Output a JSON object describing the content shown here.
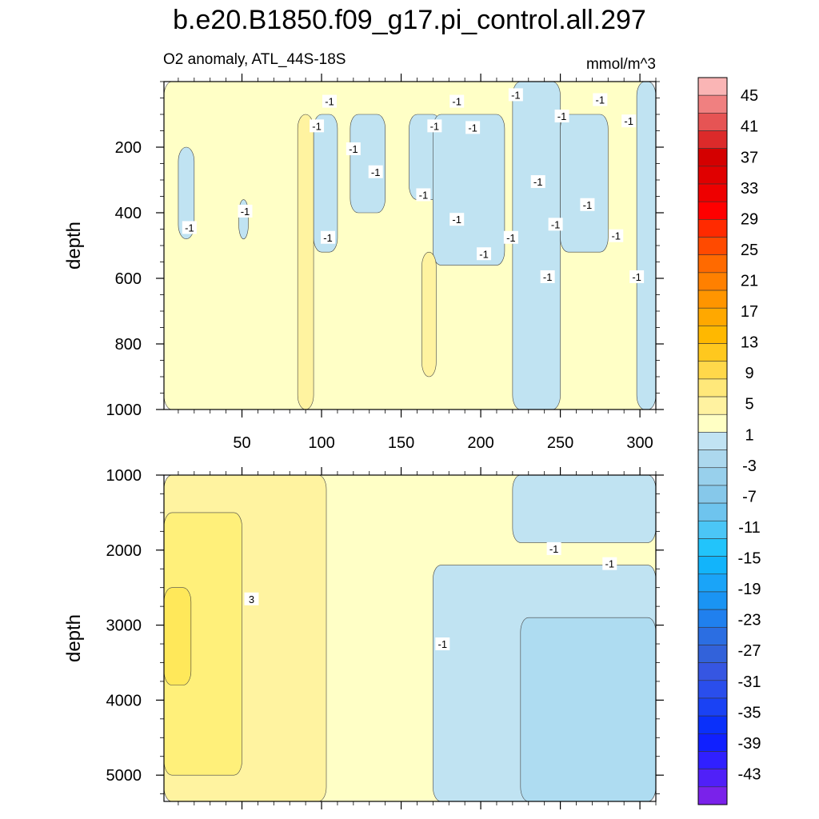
{
  "chart_data": {
    "type": "heatmap",
    "title": "b.e20.B1850.f09_g17.pi_control.all.297",
    "subtitle_left": "O2 anomaly, ATL_44S-18S",
    "subtitle_right": "mmol/m^3",
    "xlim": [
      1,
      310
    ],
    "x_ticks": [
      50,
      100,
      150,
      200,
      250,
      300
    ],
    "x_tick_labels": [
      "50",
      "100",
      "150",
      "200",
      "250",
      "300"
    ],
    "panels": [
      {
        "name": "upper",
        "ylabel": "depth",
        "ylim": [
          0,
          1000
        ],
        "y_ticks": [
          200,
          400,
          600,
          800,
          1000
        ],
        "y_tick_labels": [
          "200",
          "400",
          "600",
          "800",
          "1000"
        ],
        "regions": [
          {
            "level": 1,
            "x": [
              1,
              310
            ],
            "y": [
              0,
              1000
            ]
          },
          {
            "level": -1,
            "x": [
              220,
              250
            ],
            "y": [
              0,
              1000
            ]
          },
          {
            "level": -1,
            "x": [
              298,
              310
            ],
            "y": [
              0,
              1000
            ]
          },
          {
            "level": -1,
            "x": [
              10,
              20
            ],
            "y": [
              200,
              480
            ]
          },
          {
            "level": -1,
            "x": [
              48,
              54
            ],
            "y": [
              360,
              480
            ]
          },
          {
            "level": -1,
            "x": [
              95,
              110
            ],
            "y": [
              100,
              520
            ]
          },
          {
            "level": -1,
            "x": [
              118,
              140
            ],
            "y": [
              100,
              400
            ]
          },
          {
            "level": -1,
            "x": [
              155,
              175
            ],
            "y": [
              100,
              360
            ]
          },
          {
            "level": -1,
            "x": [
              170,
              215
            ],
            "y": [
              100,
              560
            ]
          },
          {
            "level": -1,
            "x": [
              250,
              280
            ],
            "y": [
              100,
              520
            ]
          },
          {
            "level": 3,
            "x": [
              85,
              95
            ],
            "y": [
              100,
              1000
            ]
          },
          {
            "level": 3,
            "x": [
              163,
              172
            ],
            "y": [
              520,
              900
            ]
          }
        ],
        "contour_labels": [
          {
            "text": "-1",
            "x": 105,
            "y": 60
          },
          {
            "text": "-1",
            "x": 97,
            "y": 135
          },
          {
            "text": "-1",
            "x": 120,
            "y": 205
          },
          {
            "text": "-1",
            "x": 134,
            "y": 275
          },
          {
            "text": "-1",
            "x": 185,
            "y": 60
          },
          {
            "text": "-1",
            "x": 171,
            "y": 135
          },
          {
            "text": "-1",
            "x": 195,
            "y": 140
          },
          {
            "text": "-1",
            "x": 222,
            "y": 40
          },
          {
            "text": "-1",
            "x": 251,
            "y": 105
          },
          {
            "text": "-1",
            "x": 275,
            "y": 55
          },
          {
            "text": "-1",
            "x": 293,
            "y": 120
          },
          {
            "text": "-1",
            "x": 236,
            "y": 305
          },
          {
            "text": "-1",
            "x": 164,
            "y": 345
          },
          {
            "text": "-1",
            "x": 52,
            "y": 395
          },
          {
            "text": "-1",
            "x": 17,
            "y": 445
          },
          {
            "text": "-1",
            "x": 104,
            "y": 475
          },
          {
            "text": "-1",
            "x": 185,
            "y": 420
          },
          {
            "text": "-1",
            "x": 219,
            "y": 475
          },
          {
            "text": "-1",
            "x": 202,
            "y": 525
          },
          {
            "text": "-1",
            "x": 247,
            "y": 435
          },
          {
            "text": "-1",
            "x": 267,
            "y": 375
          },
          {
            "text": "-1",
            "x": 285,
            "y": 470
          },
          {
            "text": "-1",
            "x": 242,
            "y": 595
          },
          {
            "text": "-1",
            "x": 298,
            "y": 595
          }
        ]
      },
      {
        "name": "lower",
        "ylabel": "depth",
        "ylim": [
          1000,
          5350
        ],
        "y_ticks": [
          1000,
          2000,
          3000,
          4000,
          5000
        ],
        "y_tick_labels": [
          "1000",
          "2000",
          "3000",
          "4000",
          "5000"
        ],
        "regions": [
          {
            "level": 1,
            "x": [
              1,
              310
            ],
            "y": [
              1000,
              5350
            ]
          },
          {
            "level": 3,
            "x": [
              1,
              103
            ],
            "y": [
              1000,
              5350
            ]
          },
          {
            "level": 5,
            "x": [
              1,
              50
            ],
            "y": [
              1500,
              5000
            ]
          },
          {
            "level": 7,
            "x": [
              1,
              18
            ],
            "y": [
              2500,
              3800
            ]
          },
          {
            "level": -1,
            "x": [
              170,
              310
            ],
            "y": [
              2200,
              5350
            ]
          },
          {
            "level": -1,
            "x": [
              220,
              310
            ],
            "y": [
              1000,
              1900
            ]
          },
          {
            "level": -3,
            "x": [
              225,
              310
            ],
            "y": [
              2900,
              5350
            ]
          }
        ],
        "contour_labels": [
          {
            "text": "3",
            "x": 56,
            "y": 2650
          },
          {
            "text": "-1",
            "x": 176,
            "y": 3250
          },
          {
            "text": "-1",
            "x": 246,
            "y": 1980
          },
          {
            "text": "-1",
            "x": 281,
            "y": 2180
          }
        ]
      }
    ],
    "colorbar": {
      "labels": [
        "45",
        "41",
        "37",
        "33",
        "29",
        "25",
        "21",
        "17",
        "13",
        "9",
        "5",
        "1",
        "-3",
        "-7",
        "-11",
        "-15",
        "-19",
        "-23",
        "-27",
        "-31",
        "-35",
        "-39",
        "-43"
      ],
      "colors": [
        "#fab5b5",
        "#f08080",
        "#e65454",
        "#dc2a2a",
        "#d40000",
        "#e00000",
        "#ee0000",
        "#ff0000",
        "#ff2a00",
        "#ff4a00",
        "#ff6a00",
        "#ff8000",
        "#ff9500",
        "#ffa800",
        "#ffb800",
        "#ffc81e",
        "#ffd84a",
        "#ffe87a",
        "#fff2a0",
        "#ffffc4",
        "#c1e3f3",
        "#acd8ee",
        "#98d0ec",
        "#86c8ea",
        "#6ec4ee",
        "#4bc6f6",
        "#22c4fb",
        "#12b4fb",
        "#1aa4f8",
        "#1a94f3",
        "#2080ee",
        "#2b6ee2",
        "#3262da",
        "#3656e2",
        "#2a4eec",
        "#1a42f4",
        "#0a30fa",
        "#1020ff",
        "#3020ff",
        "#5020f8",
        "#7a22ea"
      ]
    },
    "level_colors": {
      "7": "#ffe85a",
      "5": "#fff07a",
      "3": "#fff3a0",
      "1": "#ffffc6",
      "-1": "#c0e3f2",
      "-3": "#aedcf1"
    }
  }
}
